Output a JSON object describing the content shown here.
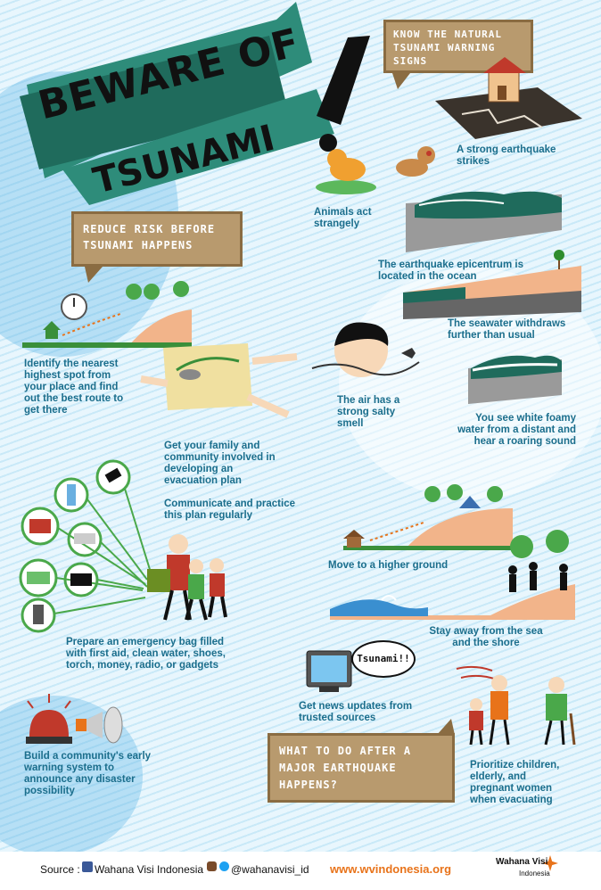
{
  "title": {
    "line1": "BEWARE OF",
    "line2": "TSUNAMI",
    "mark": "!"
  },
  "sections": {
    "signs_heading": "KNOW THE NATURAL TSUNAMI WARNING SIGNS",
    "reduce_heading": "REDUCE RISK BEFORE TSUNAMI HAPPENS",
    "after_heading": "WHAT TO DO AFTER A MAJOR EARTHQUAKE HAPPENS?"
  },
  "signs": {
    "earthquake": "A strong earthquake strikes",
    "animals": "Animals act strangely",
    "epicentrum": "The earthquake epicentrum is located in the ocean",
    "seawater": "The seawater withdraws further than usual",
    "air": "The air has a strong salty smell",
    "foam": "You see white foamy water from a distant and hear a roaring sound"
  },
  "reduce": {
    "highest_spot": "Identify the nearest highest spot from your place and find out the best route to get there",
    "family": "Get your family and community involved in developing an evacuation plan",
    "practice": "Communicate and practice this plan regularly",
    "bag": "Prepare an emergency bag filled with first aid, clean water, shoes, torch, money, radio, or gadgets",
    "warning_system": "Build a community's early warning system to announce any disaster possibility"
  },
  "after": {
    "higher_ground": "Move to a higher ground",
    "stay_away": "Stay away from the sea and the shore",
    "news": "Get news updates from trusted sources",
    "tv_bubble": "Tsunami!!",
    "prioritize": "Prioritize children, elderly, and pregnant women when evacuating"
  },
  "footer": {
    "source_label": "Source :",
    "org": "Wahana Visi Indonesia",
    "social": "@wahanavisi_id",
    "website": "www.wvindonesia.org",
    "logo_line1": "Wahana Visi",
    "logo_line2": "Indonesia"
  },
  "colors": {
    "teal": "#2e8c7a",
    "dark": "#1a1a1a",
    "text": "#1b6e8c",
    "sign": "#b89a6e",
    "orange": "#e8731a",
    "sand": "#f2b48a"
  }
}
